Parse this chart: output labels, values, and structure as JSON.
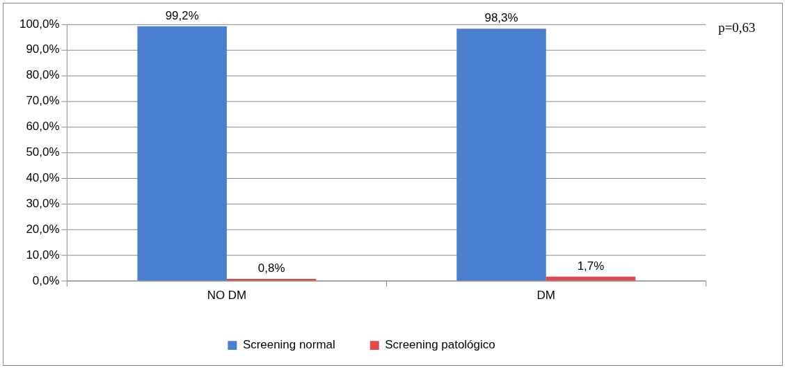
{
  "chart_data": {
    "type": "bar",
    "categories": [
      "NO DM",
      "DM"
    ],
    "series": [
      {
        "name": "Screening normal",
        "color": "#4a7fd0",
        "values": [
          99.2,
          98.3
        ],
        "value_labels": [
          "99,2%",
          "98,3%"
        ]
      },
      {
        "name": "Screening patológico",
        "color": "#e04a4a",
        "values": [
          0.8,
          1.7
        ],
        "value_labels": [
          "0,8%",
          "1,7%"
        ]
      }
    ],
    "ylim": [
      0,
      100
    ],
    "yticks": [
      {
        "value": 0,
        "label": "0,0%"
      },
      {
        "value": 10,
        "label": "10,0%"
      },
      {
        "value": 20,
        "label": "20,0%"
      },
      {
        "value": 30,
        "label": "30,0%"
      },
      {
        "value": 40,
        "label": "40,0%"
      },
      {
        "value": 50,
        "label": "50,0%"
      },
      {
        "value": 60,
        "label": "60,0%"
      },
      {
        "value": 70,
        "label": "70,0%"
      },
      {
        "value": 80,
        "label": "80,0%"
      },
      {
        "value": 90,
        "label": "90,0%"
      },
      {
        "value": 100,
        "label": "100,0%"
      }
    ],
    "grid": "y",
    "legend": "bottom",
    "annotations": [
      "p=0,63"
    ]
  }
}
